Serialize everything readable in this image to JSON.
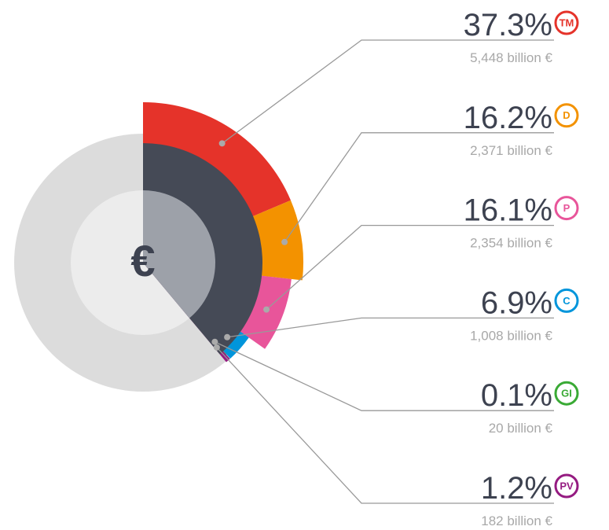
{
  "chart_data": {
    "type": "pie",
    "center_label": "€",
    "categories": [
      "TM",
      "D",
      "P",
      "C",
      "GI",
      "PV"
    ],
    "values": [
      37.3,
      16.2,
      16.1,
      6.9,
      0.1,
      1.2
    ],
    "value_labels": [
      "37.3%",
      "16.2%",
      "16.1%",
      "6.9%",
      "0.1%",
      "1.2%"
    ],
    "amount_labels": [
      "5,448 billion €",
      "2,371 billion €",
      "2,354 billion €",
      "1,008 billion €",
      "20 billion €",
      "182 billion €"
    ],
    "colors": [
      "#e5332a",
      "#f39200",
      "#e8559a",
      "#0095db",
      "#3aaa35",
      "#951b81"
    ]
  }
}
